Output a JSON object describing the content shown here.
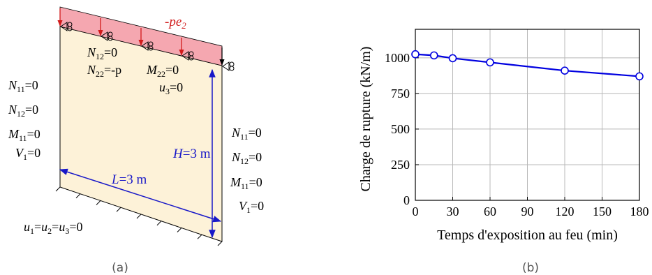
{
  "colors": {
    "wall_fill": "#fdf2d8",
    "load_fill": "#f5a7b0",
    "load_arrow": "#d11a1a",
    "dimension": "#1818c8",
    "series": "#0000e0",
    "grid": "#b8b8b8",
    "ink": "#000000"
  },
  "panel_a": {
    "caption": "(a)",
    "load_label": {
      "prefix": "-pe",
      "sub": "2"
    },
    "top_bc": [
      {
        "main": "N",
        "sub": "12",
        "rest": "=0"
      },
      {
        "main": "N",
        "sub": "22",
        "rest": "=-p"
      },
      {
        "main": "M",
        "sub": "22",
        "rest": "=0"
      },
      {
        "main": "u",
        "sub": "3",
        "rest": "=0"
      }
    ],
    "left_bc": [
      {
        "main": "N",
        "sub": "11",
        "rest": "=0"
      },
      {
        "main": "N",
        "sub": "12",
        "rest": "=0"
      },
      {
        "main": "M",
        "sub": "11",
        "rest": "=0"
      },
      {
        "main": "V",
        "sub": "1",
        "rest": "=0"
      }
    ],
    "right_bc": [
      {
        "main": "N",
        "sub": "11",
        "rest": "=0"
      },
      {
        "main": "N",
        "sub": "12",
        "rest": "=0"
      },
      {
        "main": "M",
        "sub": "11",
        "rest": "=0"
      },
      {
        "main": "V",
        "sub": "1",
        "rest": "=0"
      }
    ],
    "bottom_bc": {
      "parts": [
        [
          "u",
          "1",
          "="
        ],
        [
          "u",
          "2",
          "="
        ],
        [
          "u",
          "3",
          "=0"
        ]
      ]
    },
    "height_dim": {
      "sym": "H",
      "rest": "=3 m"
    },
    "length_dim": {
      "sym": "L",
      "rest": "=3 m"
    },
    "support_icon": "pinned-roller-icon"
  },
  "panel_b": {
    "caption": "(b)"
  },
  "chart_data": {
    "type": "line",
    "xlabel": "Temps d'exposition au feu (min)",
    "ylabel": "Charge de rupture (kN/m)",
    "xlim": [
      0,
      180
    ],
    "ylim": [
      0,
      1200
    ],
    "xticks": [
      0,
      30,
      60,
      90,
      120,
      150,
      180
    ],
    "yticks": [
      0,
      250,
      500,
      750,
      1000
    ],
    "grid": true,
    "marker": "open-circle",
    "series": [
      {
        "x": [
          0,
          15,
          30,
          60,
          120,
          180
        ],
        "y": [
          1025,
          1017,
          997,
          968,
          910,
          870
        ]
      }
    ]
  }
}
